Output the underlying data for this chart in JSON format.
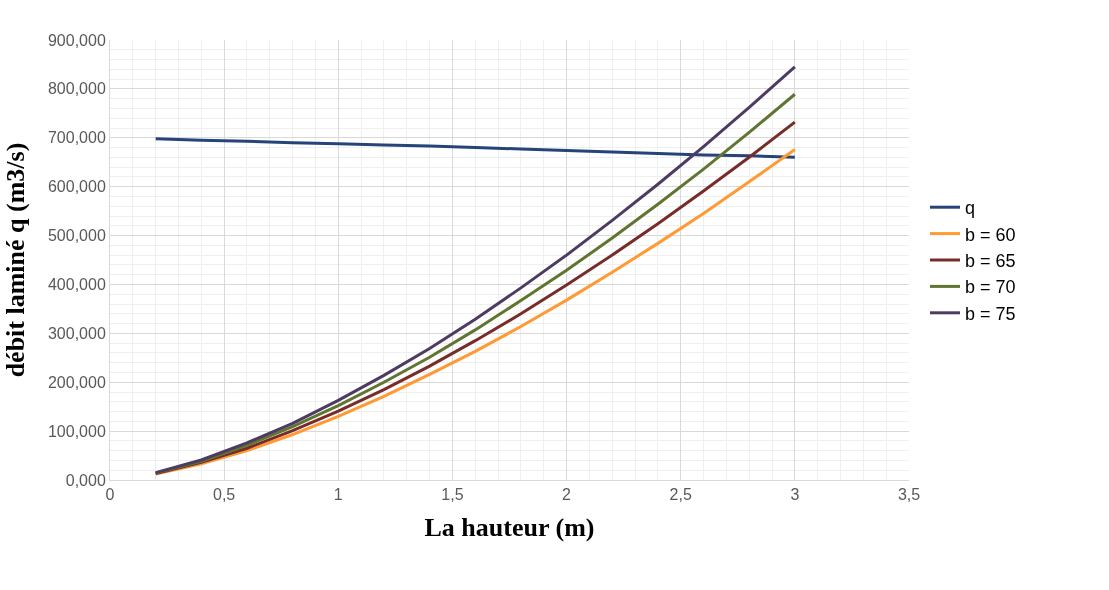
{
  "chart_data": {
    "type": "line",
    "xlabel": "La hauteur (m)",
    "ylabel": "débit laminé q (m3/s)",
    "x": [
      0.2,
      0.4,
      0.6,
      0.8,
      1.0,
      1.2,
      1.4,
      1.6,
      1.8,
      2.0,
      2.2,
      2.4,
      2.6,
      2.8,
      3.0
    ],
    "series": [
      {
        "name": "q",
        "color": "#264478",
        "values": [
          698,
          695,
          693,
          690,
          688,
          685,
          683,
          680,
          677,
          674,
          671,
          668,
          665,
          663,
          660
        ]
      },
      {
        "name": "b = 60",
        "color": "#ff9933",
        "values": [
          12,
          33,
          60,
          93,
          130,
          171,
          216,
          263,
          314,
          368,
          425,
          484,
          545,
          610,
          676
        ]
      },
      {
        "name": "b = 65",
        "color": "#772c2a",
        "values": [
          13,
          36,
          65,
          101,
          141,
          185,
          233,
          285,
          340,
          399,
          460,
          524,
          591,
          660,
          732
        ]
      },
      {
        "name": "b = 70",
        "color": "#5f7530",
        "values": [
          14,
          38,
          71,
          109,
          152,
          200,
          251,
          307,
          367,
          429,
          495,
          564,
          636,
          711,
          789
        ]
      },
      {
        "name": "b = 75",
        "color": "#4d3b62",
        "values": [
          15,
          41,
          76,
          116,
          163,
          214,
          269,
          329,
          393,
          460,
          531,
          605,
          682,
          762,
          845
        ]
      }
    ],
    "xlim": [
      0,
      3.5
    ],
    "xticks": [
      0,
      {
        "value": 0.5,
        "label": "0,5"
      },
      1,
      {
        "value": 1.5,
        "label": "1,5"
      },
      2,
      {
        "value": 2.5,
        "label": "2,5"
      },
      3,
      {
        "value": 3.5,
        "label": "3,5"
      }
    ],
    "ylim": [
      0,
      900
    ],
    "yticks": [
      {
        "value": 0,
        "label": "0,000"
      },
      {
        "value": 100,
        "label": "100,000"
      },
      {
        "value": 200,
        "label": "200,000"
      },
      {
        "value": 300,
        "label": "300,000"
      },
      {
        "value": 400,
        "label": "400,000"
      },
      {
        "value": 500,
        "label": "500,000"
      },
      {
        "value": 600,
        "label": "600,000"
      },
      {
        "value": 700,
        "label": "700,000"
      },
      {
        "value": 800,
        "label": "800,000"
      },
      {
        "value": 900,
        "label": "900,000"
      }
    ],
    "grid": true,
    "legend": "right",
    "marker": "none",
    "line_style": "solid"
  }
}
